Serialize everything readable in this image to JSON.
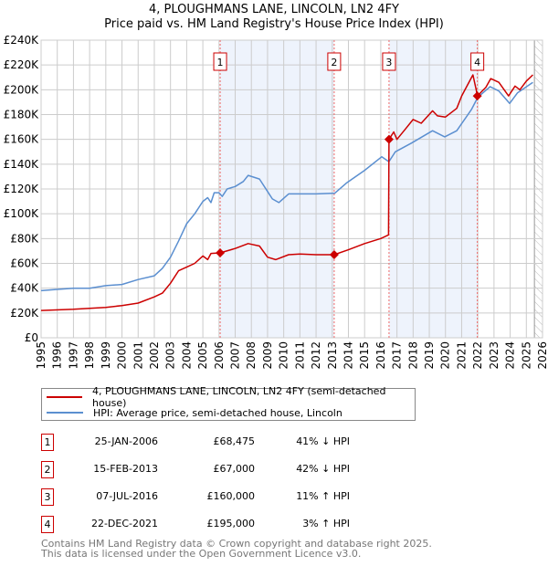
{
  "chart_data": {
    "type": "line",
    "title": "4, PLOUGHMANS LANE, LINCOLN, LN2 4FY",
    "subtitle": "Price paid vs. HM Land Registry's House Price Index (HPI)",
    "xlim": [
      1995,
      2026
    ],
    "ylim": [
      0,
      240000
    ],
    "x_ticks": [
      "1995",
      "1996",
      "1997",
      "1998",
      "1999",
      "2000",
      "2001",
      "2002",
      "2003",
      "2004",
      "2005",
      "2006",
      "2007",
      "2008",
      "2009",
      "2010",
      "2011",
      "2012",
      "2013",
      "2014",
      "2015",
      "2016",
      "2017",
      "2018",
      "2019",
      "2020",
      "2021",
      "2022",
      "2023",
      "2024",
      "2025",
      "2026"
    ],
    "y_ticks": [
      "£0",
      "£20K",
      "£40K",
      "£60K",
      "£80K",
      "£100K",
      "£120K",
      "£140K",
      "£160K",
      "£180K",
      "£200K",
      "£220K",
      "£240K"
    ],
    "grid": true,
    "shaded_ranges": [
      [
        2006.07,
        2013.12
      ],
      [
        2016.51,
        2021.97
      ]
    ],
    "forecast_hatch_from": 2025.5,
    "series": [
      {
        "name": "4, PLOUGHMANS LANE, LINCOLN, LN2 4FY (semi-detached house)",
        "color": "#cc0000",
        "x": [
          1995,
          1997,
          1999,
          2000,
          2001,
          2002,
          2002.5,
          2003,
          2003.5,
          2004,
          2004.5,
          2005,
          2005.3,
          2005.5,
          2006.07,
          2007,
          2007.8,
          2008.5,
          2009,
          2009.5,
          2010.3,
          2011,
          2012,
          2013.12,
          2014,
          2015,
          2016,
          2016.48,
          2016.51,
          2016.8,
          2017,
          2017.5,
          2018,
          2018.5,
          2019.2,
          2019.5,
          2020,
          2020.7,
          2021,
          2021.7,
          2021.9,
          2021.97,
          2022.5,
          2022.8,
          2023.3,
          2023.9,
          2024.3,
          2024.6,
          2025,
          2025.4
        ],
        "y": [
          22000,
          23000,
          24500,
          26000,
          28000,
          33000,
          36000,
          44000,
          54000,
          57000,
          60000,
          66000,
          63000,
          68000,
          68475,
          72000,
          76000,
          74000,
          65000,
          63000,
          67000,
          67500,
          67000,
          67000,
          71000,
          76000,
          80000,
          83000,
          160000,
          166000,
          160000,
          168000,
          176000,
          173000,
          183000,
          179000,
          178000,
          185000,
          195000,
          212000,
          200000,
          195000,
          202000,
          209000,
          206000,
          195000,
          203000,
          200000,
          207000,
          212000
        ]
      },
      {
        "name": "HPI: Average price, semi-detached house, Lincoln",
        "color": "#5b8fd0",
        "x": [
          1995,
          1996,
          1997,
          1998,
          1999,
          2000,
          2001,
          2002,
          2002.5,
          2003,
          2003.5,
          2004,
          2004.5,
          2005,
          2005.3,
          2005.5,
          2005.7,
          2006,
          2006.2,
          2006.5,
          2007,
          2007.5,
          2007.8,
          2008.5,
          2009,
          2009.3,
          2009.7,
          2010.3,
          2011,
          2012,
          2013.16,
          2013.9,
          2015,
          2016.06,
          2016.5,
          2016.9,
          2017.9,
          2019.2,
          2019.95,
          2020.7,
          2021.6,
          2022,
          2022.76,
          2023.3,
          2023.97,
          2024.46,
          2025.4
        ],
        "y": [
          38000,
          39000,
          40000,
          40000,
          42000,
          43000,
          47000,
          50000,
          56000,
          65000,
          78000,
          92000,
          100000,
          110000,
          113000,
          109000,
          117000,
          117000,
          114000,
          120000,
          122000,
          126000,
          131000,
          128000,
          118000,
          112000,
          109000,
          116000,
          116000,
          116000,
          116600,
          125000,
          135000,
          146000,
          142000,
          150000,
          157000,
          167000,
          162000,
          167000,
          184000,
          194000,
          202500,
          199000,
          189000,
          197600,
          206000
        ]
      }
    ],
    "sales": [
      {
        "label": "1",
        "x": 2006.07,
        "y": 68475
      },
      {
        "label": "2",
        "x": 2013.12,
        "y": 67000
      },
      {
        "label": "3",
        "x": 2016.51,
        "y": 160000
      },
      {
        "label": "4",
        "x": 2021.97,
        "y": 195000
      }
    ]
  },
  "legend": {
    "property": "4, PLOUGHMANS LANE, LINCOLN, LN2 4FY (semi-detached house)",
    "hpi": "HPI: Average price, semi-detached house, Lincoln"
  },
  "table": [
    {
      "num": "1",
      "date": "25-JAN-2006",
      "price": "£68,475",
      "hpi": "41% ↓ HPI"
    },
    {
      "num": "2",
      "date": "15-FEB-2013",
      "price": "£67,000",
      "hpi": "42% ↓ HPI"
    },
    {
      "num": "3",
      "date": "07-JUL-2016",
      "price": "£160,000",
      "hpi": "11% ↑ HPI"
    },
    {
      "num": "4",
      "date": "22-DEC-2021",
      "price": "£195,000",
      "hpi": "3% ↑ HPI"
    }
  ],
  "footer": {
    "line1": "Contains HM Land Registry data © Crown copyright and database right 2025.",
    "line2": "This data is licensed under the Open Government Licence v3.0."
  }
}
